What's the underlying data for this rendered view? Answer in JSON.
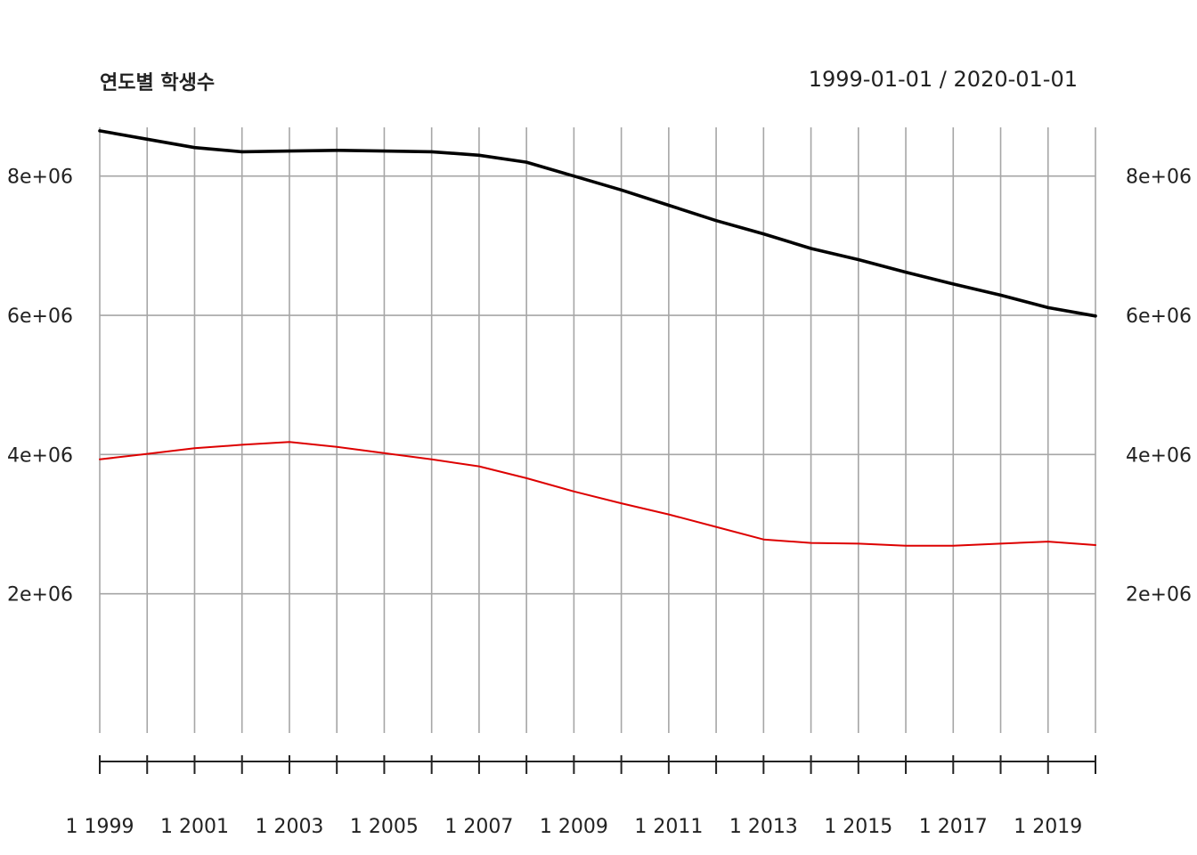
{
  "chart_data": {
    "type": "line",
    "title": "연도별 학생수",
    "date_range_label": "1999-01-01 / 2020-01-01",
    "x": [
      1999,
      2000,
      2001,
      2002,
      2003,
      2004,
      2005,
      2006,
      2007,
      2008,
      2009,
      2010,
      2011,
      2012,
      2013,
      2014,
      2015,
      2016,
      2017,
      2018,
      2019,
      2020
    ],
    "x_tick_labels": [
      "1 1999",
      "1 2001",
      "1 2003",
      "1 2005",
      "1 2007",
      "1 2009",
      "1 2011",
      "1 2013",
      "1 2015",
      "1 2017",
      "1 2019"
    ],
    "x_tick_years": [
      1999,
      2001,
      2003,
      2005,
      2007,
      2009,
      2011,
      2013,
      2015,
      2017,
      2019
    ],
    "y_tick_values": [
      2000000,
      4000000,
      6000000,
      8000000
    ],
    "y_tick_labels": [
      "2e+06",
      "4e+06",
      "6e+06",
      "8e+06"
    ],
    "ylim": [
      0,
      8700000
    ],
    "grid": true,
    "series": [
      {
        "color": "#000000",
        "values": [
          8650000,
          8530000,
          8410000,
          8350000,
          8360000,
          8370000,
          8360000,
          8350000,
          8300000,
          8200000,
          8000000,
          7800000,
          7580000,
          7360000,
          7170000,
          6960000,
          6800000,
          6620000,
          6450000,
          6290000,
          6110000,
          5990000
        ]
      },
      {
        "color": "#dd0000",
        "values": [
          3930000,
          4010000,
          4090000,
          4140000,
          4180000,
          4110000,
          4020000,
          3930000,
          3830000,
          3660000,
          3470000,
          3300000,
          3140000,
          2960000,
          2780000,
          2730000,
          2720000,
          2690000,
          2690000,
          2720000,
          2750000,
          2700000
        ]
      }
    ]
  }
}
